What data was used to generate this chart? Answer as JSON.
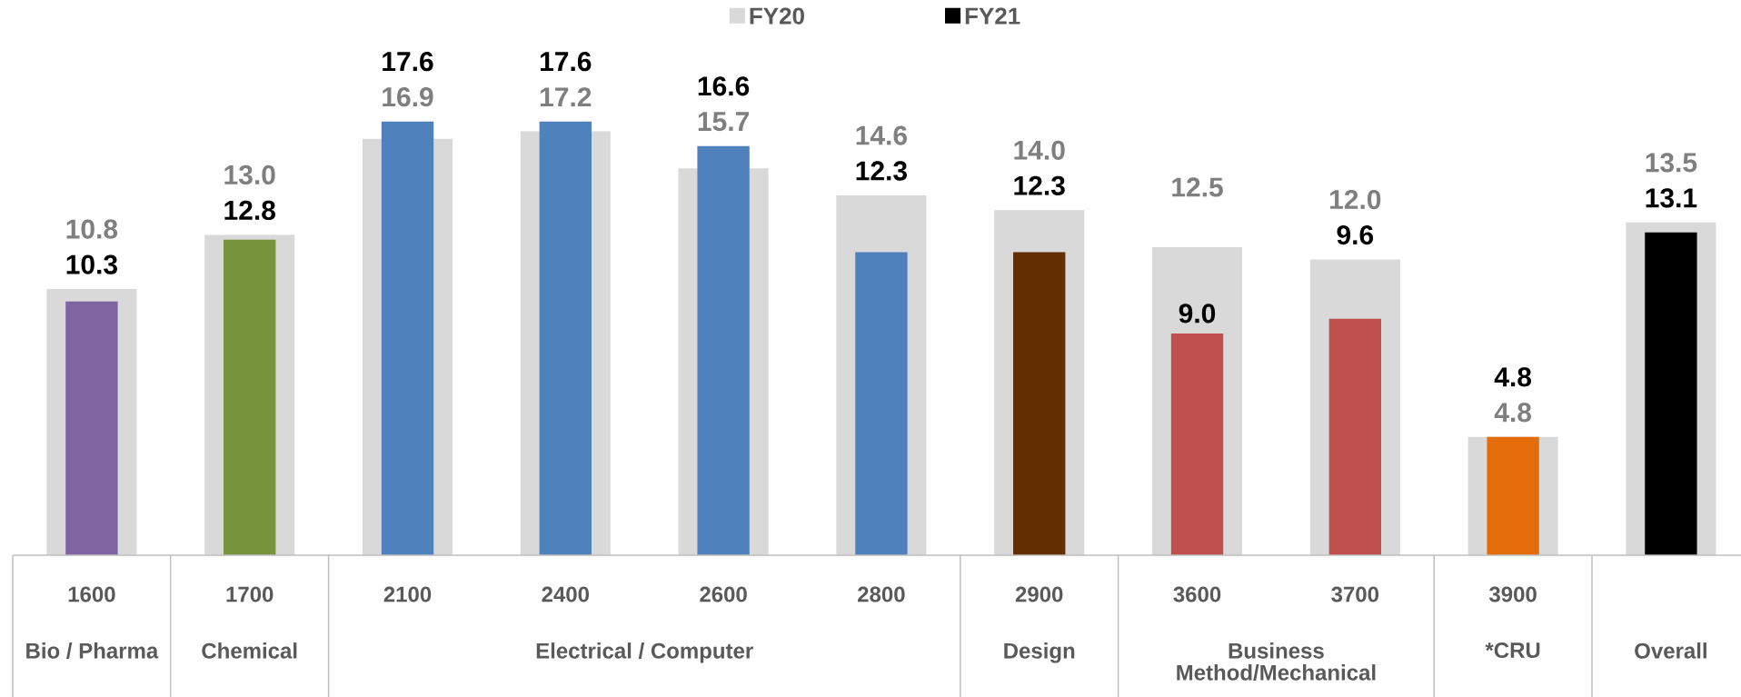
{
  "chart_data": {
    "type": "bar",
    "categories": [
      "1600",
      "1700",
      "2100",
      "2400",
      "2600",
      "2800",
      "2900",
      "3600",
      "3700",
      "3900",
      null
    ],
    "series": [
      {
        "name": "FY20",
        "color": "#d9d9d9",
        "values": [
          10.8,
          13.0,
          16.9,
          17.2,
          15.7,
          14.6,
          14.0,
          12.5,
          12.0,
          4.8,
          13.5
        ],
        "value_labels": [
          "10.8",
          "13.0",
          "16.9",
          "17.2",
          "15.7",
          "14.6",
          "14.0",
          "12.5",
          "12.0",
          "4.8",
          "13.5"
        ]
      },
      {
        "name": "FY21",
        "color": "#000000",
        "colors": [
          "#8064a2",
          "#77933c",
          "#4f81bd",
          "#4f81bd",
          "#4f81bd",
          "#4f81bd",
          "#632e00",
          "#c0504d",
          "#c0504d",
          "#e46c0a",
          "#000000"
        ],
        "values": [
          10.3,
          12.8,
          17.6,
          17.6,
          16.6,
          12.3,
          12.3,
          9.0,
          9.6,
          4.8,
          13.1
        ],
        "value_labels": [
          "10.3",
          "12.8",
          "17.6",
          "17.6",
          "16.6",
          "12.3",
          "12.3",
          "9.0",
          "9.6",
          "4.8",
          "13.1"
        ]
      }
    ],
    "annotations": [
      "Bio / Pharma",
      "Chemical",
      "Electrical / Computer",
      "Design",
      "Business Method/Mechanical",
      "*CRU",
      "Overall"
    ],
    "legend": "top"
  }
}
